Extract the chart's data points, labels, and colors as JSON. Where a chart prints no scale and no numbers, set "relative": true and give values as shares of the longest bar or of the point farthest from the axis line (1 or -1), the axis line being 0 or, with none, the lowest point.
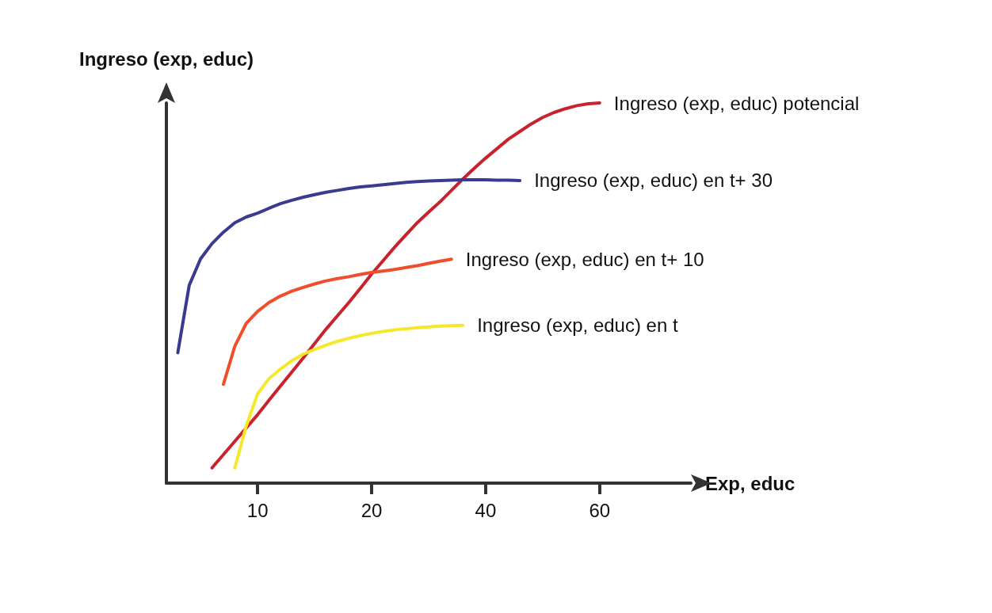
{
  "chart_data": {
    "type": "line",
    "relative": true,
    "ylabel": "Ingreso (exp, educ)",
    "xlabel": "Exp, educ",
    "categories": [
      null,
      null,
      null,
      null,
      null,
      null,
      null,
      null,
      "10",
      null,
      null,
      null,
      null,
      null,
      null,
      null,
      null,
      null,
      "20",
      null,
      null,
      null,
      null,
      null,
      null,
      null,
      null,
      null,
      "40",
      null,
      null,
      null,
      null,
      null,
      null,
      null,
      null,
      null,
      "60",
      null,
      null,
      null,
      null,
      null,
      null,
      null,
      null
    ],
    "tick_labels": "x",
    "grid": false,
    "legend": false,
    "marker": "none",
    "line_style": "solid",
    "series": [
      {
        "name": "Ingreso (exp, educ) potencial",
        "color": "#c8222c",
        "values": [
          null,
          null,
          null,
          null,
          0.04,
          0.075,
          0.11,
          0.145,
          0.18,
          0.218,
          0.255,
          0.292,
          0.329,
          0.367,
          0.405,
          0.44,
          0.475,
          0.512,
          0.55,
          0.585,
          0.62,
          0.653,
          0.685,
          0.713,
          0.74,
          0.77,
          0.8,
          0.828,
          0.855,
          0.88,
          0.905,
          0.925,
          0.945,
          0.962,
          0.975,
          0.985,
          0.993,
          0.998,
          1.0,
          null,
          null,
          null,
          null,
          null,
          null,
          null,
          null
        ]
      },
      {
        "name": "Ingreso (exp, educ) en t+ 30",
        "color": "#3a3a8f",
        "values": [
          null,
          0.343,
          0.52,
          0.59,
          0.63,
          0.66,
          0.685,
          0.7,
          0.71,
          0.723,
          0.735,
          0.744,
          0.752,
          0.759,
          0.765,
          0.77,
          0.775,
          0.779,
          0.782,
          0.785,
          0.788,
          0.791,
          0.793,
          0.795,
          0.796,
          0.797,
          0.798,
          0.798,
          0.798,
          0.797,
          0.797,
          0.796,
          null,
          null,
          null,
          null,
          null,
          null,
          null,
          null,
          null,
          null,
          null,
          null,
          null,
          null,
          null
        ]
      },
      {
        "name": "Ingreso (exp, educ) en t+ 10",
        "color": "#f04e2a",
        "values": [
          null,
          null,
          null,
          null,
          null,
          0.26,
          0.36,
          0.42,
          0.452,
          0.475,
          0.492,
          0.505,
          0.515,
          0.524,
          0.532,
          0.538,
          0.543,
          0.549,
          0.554,
          0.558,
          0.562,
          0.567,
          0.572,
          0.578,
          0.584,
          0.589,
          null,
          null,
          null,
          null,
          null,
          null,
          null,
          null,
          null,
          null,
          null,
          null,
          null,
          null,
          null,
          null,
          null,
          null,
          null,
          null,
          null
        ]
      },
      {
        "name": "Ingreso (exp, educ) en t",
        "color": "#f5e82a",
        "values": [
          null,
          null,
          null,
          null,
          null,
          null,
          0.04,
          0.15,
          0.235,
          0.275,
          0.3,
          0.322,
          0.339,
          0.352,
          0.363,
          0.373,
          0.381,
          0.388,
          0.394,
          0.399,
          0.403,
          0.406,
          0.409,
          0.411,
          0.413,
          0.414,
          0.415,
          null,
          null,
          null,
          null,
          null,
          null,
          null,
          null,
          null,
          null,
          null,
          null,
          null,
          null,
          null,
          null,
          null,
          null,
          null,
          null
        ]
      }
    ]
  }
}
